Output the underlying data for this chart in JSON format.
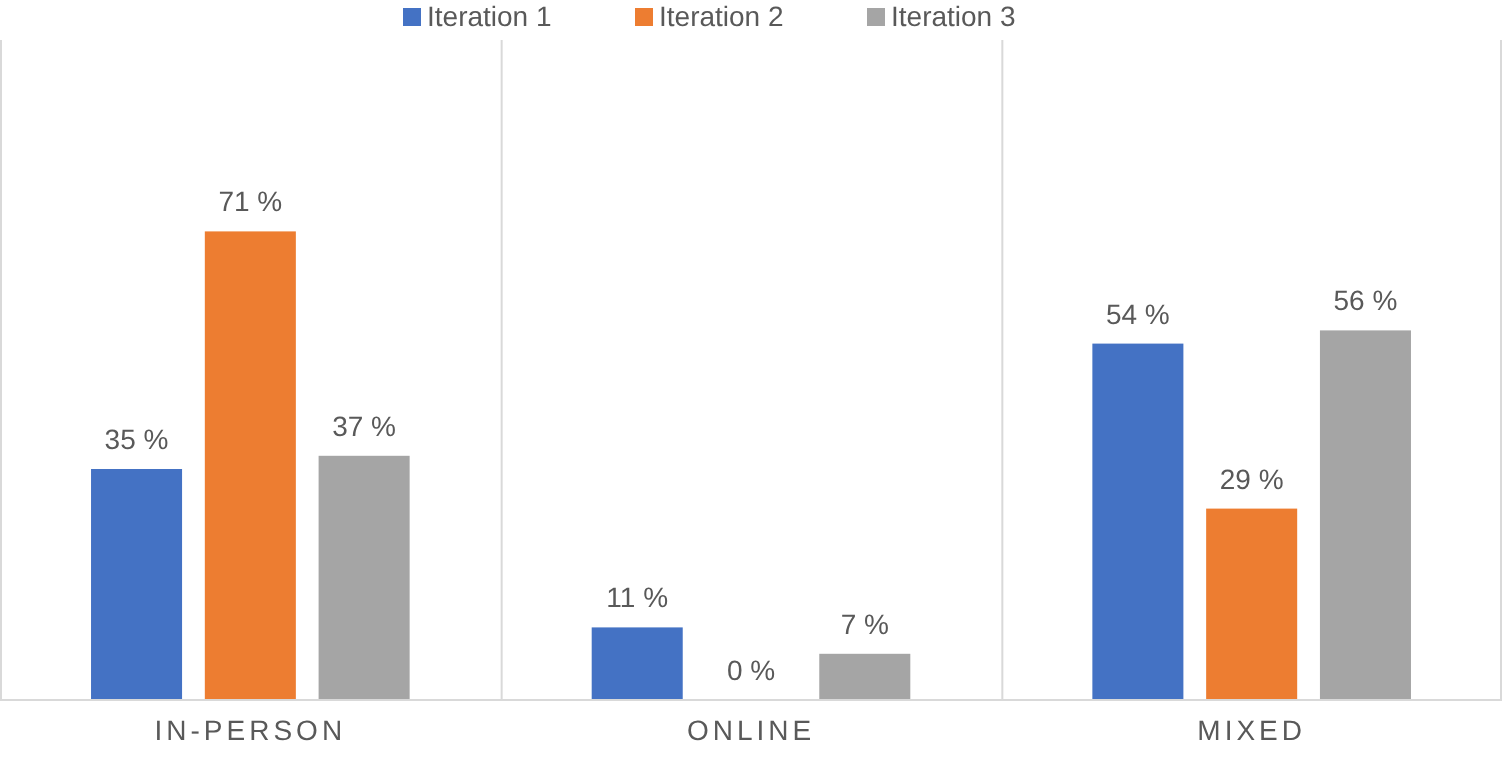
{
  "chart_data": {
    "type": "bar",
    "categories": [
      "IN-PERSON",
      "ONLINE",
      "MIXED"
    ],
    "series": [
      {
        "name": "Iteration 1",
        "color": "#4472c4",
        "values": [
          35,
          11,
          54
        ],
        "value_labels": [
          "35 %",
          "11 %",
          "54 %"
        ]
      },
      {
        "name": "Iteration 2",
        "color": "#ed7d31",
        "values": [
          71,
          0,
          29
        ],
        "value_labels": [
          "71 %",
          "0 %",
          "29 %"
        ]
      },
      {
        "name": "Iteration 3",
        "color": "#a5a5a5",
        "values": [
          37,
          7,
          56
        ],
        "value_labels": [
          "37 %",
          "7 %",
          "56 %"
        ]
      }
    ],
    "ylim": [
      0,
      100
    ],
    "grid": "x",
    "legend": "top",
    "tick_labels": "x"
  }
}
